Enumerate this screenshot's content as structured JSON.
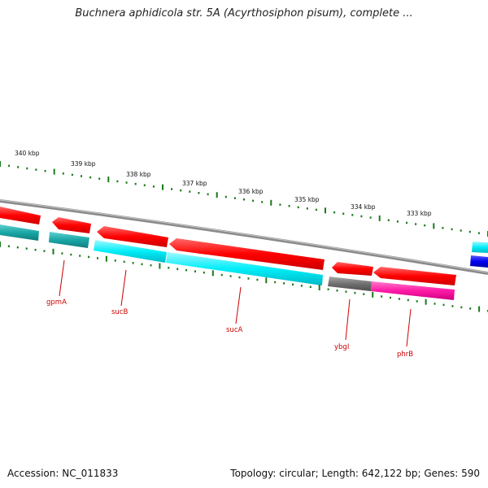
{
  "title": "Buchnera aphidicola str. 5A (Acyrthosiphon pisum), complete ...",
  "footer": {
    "accession": "Accession: NC_011833",
    "summary": "Topology: circular; Length: 642,122 bp; Genes: 590"
  },
  "ruler": {
    "labels": [
      "340 kbp",
      "339 kbp",
      "338 kbp",
      "337 kbp",
      "336 kbp",
      "335 kbp",
      "334 kbp",
      "333 kbp"
    ]
  },
  "genes": [
    {
      "name": "gpmA"
    },
    {
      "name": "sucB"
    },
    {
      "name": "sucA"
    },
    {
      "name": "ybgI"
    },
    {
      "name": "phrB"
    }
  ],
  "colors": {
    "forward_cds": "#ff0000",
    "cyan_feature": "#00e5f0",
    "teal_feature": "#1aa6a6",
    "gray_feature": "#707070",
    "magenta_feature": "#ff1aa6",
    "blue_feature": "#0000ee",
    "backbone": "#8a8a8a",
    "tick": "#1a7a1a",
    "gene_label": "#cc0000"
  }
}
